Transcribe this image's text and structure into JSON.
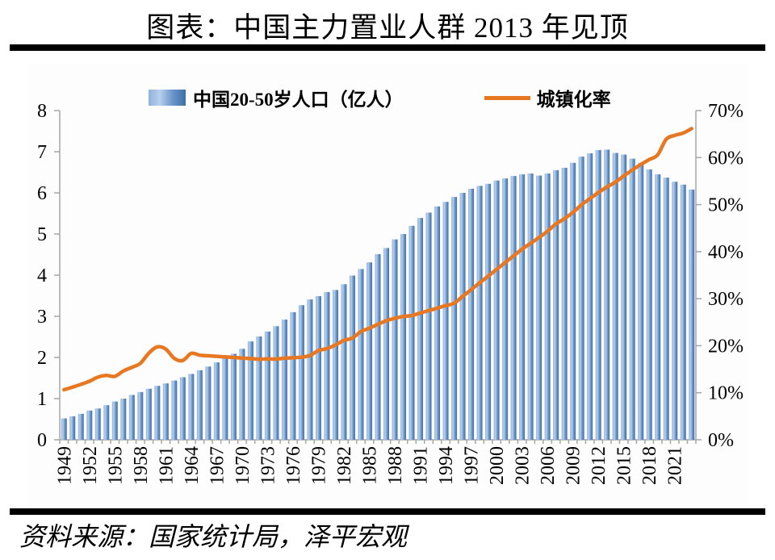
{
  "page": {
    "title": "图表：中国主力置业人群 2013 年见顶",
    "source": "资料来源：国家统计局，泽平宏观"
  },
  "legend": {
    "bar_label": "中国20-50岁人口（亿人）",
    "line_label": "城镇化率"
  },
  "chart_data": {
    "type": "bar+line combo",
    "title": "图表：中国主力置业人群 2013 年见顶",
    "grid": "off",
    "legend_position": "top-center",
    "categories": [
      1949,
      1950,
      1951,
      1952,
      1953,
      1954,
      1955,
      1956,
      1957,
      1958,
      1959,
      1960,
      1961,
      1962,
      1963,
      1964,
      1965,
      1966,
      1967,
      1968,
      1969,
      1970,
      1971,
      1972,
      1973,
      1974,
      1975,
      1976,
      1977,
      1978,
      1979,
      1980,
      1981,
      1982,
      1983,
      1984,
      1985,
      1986,
      1987,
      1988,
      1989,
      1990,
      1991,
      1992,
      1993,
      1994,
      1995,
      1996,
      1997,
      1998,
      1999,
      2000,
      2001,
      2002,
      2003,
      2004,
      2005,
      2006,
      2007,
      2008,
      2009,
      2010,
      2011,
      2012,
      2013,
      2014,
      2015,
      2016,
      2017,
      2018,
      2019,
      2020,
      2021,
      2022,
      2023
    ],
    "series": [
      {
        "name": "中国20-50岁人口（亿人）",
        "type": "bar",
        "axis": "left",
        "values": [
          0.52,
          0.57,
          0.63,
          0.71,
          0.76,
          0.84,
          0.93,
          1.0,
          1.09,
          1.16,
          1.24,
          1.31,
          1.37,
          1.44,
          1.52,
          1.6,
          1.69,
          1.78,
          1.88,
          1.98,
          2.09,
          2.21,
          2.39,
          2.51,
          2.63,
          2.76,
          2.92,
          3.1,
          3.27,
          3.41,
          3.49,
          3.59,
          3.64,
          3.78,
          3.99,
          4.15,
          4.31,
          4.51,
          4.66,
          4.87,
          5.0,
          5.2,
          5.39,
          5.52,
          5.67,
          5.78,
          5.9,
          6.0,
          6.1,
          6.17,
          6.22,
          6.3,
          6.35,
          6.41,
          6.45,
          6.47,
          6.42,
          6.47,
          6.55,
          6.61,
          6.73,
          6.88,
          6.96,
          7.04,
          7.05,
          6.97,
          6.93,
          6.83,
          6.73,
          6.57,
          6.45,
          6.37,
          6.27,
          6.2,
          6.08
        ]
      },
      {
        "name": "城镇化率",
        "type": "line",
        "axis": "right",
        "values": [
          10.64,
          11.18,
          11.78,
          12.46,
          13.31,
          13.69,
          13.48,
          14.62,
          15.39,
          16.25,
          18.41,
          19.75,
          19.29,
          17.33,
          16.84,
          18.37,
          17.98,
          17.86,
          17.74,
          17.62,
          17.5,
          17.38,
          17.26,
          17.13,
          17.2,
          17.16,
          17.34,
          17.44,
          17.55,
          17.92,
          18.96,
          19.39,
          20.16,
          21.13,
          21.62,
          23.01,
          23.71,
          24.52,
          25.32,
          25.81,
          26.21,
          26.41,
          26.94,
          27.46,
          27.99,
          28.51,
          29.04,
          30.48,
          31.91,
          33.35,
          34.78,
          36.22,
          37.66,
          39.09,
          40.53,
          41.76,
          42.99,
          44.34,
          45.89,
          46.99,
          48.34,
          49.95,
          51.27,
          52.57,
          53.73,
          54.77,
          56.1,
          57.35,
          58.52,
          59.58,
          60.6,
          63.89,
          64.72,
          65.22,
          66.16
        ]
      }
    ],
    "left_axis": {
      "min": 0,
      "max": 8,
      "step": 1,
      "tick_labels": [
        "0",
        "1",
        "2",
        "3",
        "4",
        "5",
        "6",
        "7",
        "8"
      ]
    },
    "right_axis": {
      "min": 0,
      "max": 70,
      "step": 10,
      "tick_labels": [
        "0%",
        "10%",
        "20%",
        "30%",
        "40%",
        "50%",
        "60%",
        "70%"
      ]
    },
    "x_tick_years": [
      1949,
      1952,
      1955,
      1958,
      1961,
      1964,
      1967,
      1970,
      1973,
      1976,
      1979,
      1982,
      1985,
      1988,
      1991,
      1994,
      1997,
      2000,
      2003,
      2006,
      2009,
      2012,
      2015,
      2018,
      2021
    ],
    "colors": {
      "bar_gradient": [
        "#8fb2da",
        "#b7d0ec",
        "#6b95c9",
        "#3f6fa8"
      ],
      "line": "#e87722",
      "axis": "#a6a6a6",
      "text": "#000000"
    }
  }
}
